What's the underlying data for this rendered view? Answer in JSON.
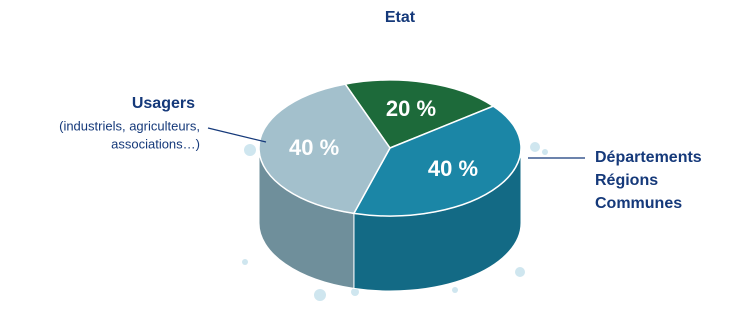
{
  "chart_data": {
    "type": "pie3d",
    "categories": [
      [
        "Etat"
      ],
      [
        "Départements",
        "Régions",
        "Communes"
      ],
      [
        "Usagers"
      ]
    ],
    "annotation": [
      "(industriels, agriculteurs,",
      "associations…)"
    ],
    "values": [
      20,
      40,
      40
    ],
    "value_labels": [
      "20 %",
      "40 %",
      "40 %"
    ],
    "colors": [
      "#1d6a3a",
      "#1b86a6",
      "#a3c0cc"
    ],
    "side_colors": [
      "#15502b",
      "#136a85",
      "#6f8f9b"
    ],
    "label_color": "#15397a"
  }
}
